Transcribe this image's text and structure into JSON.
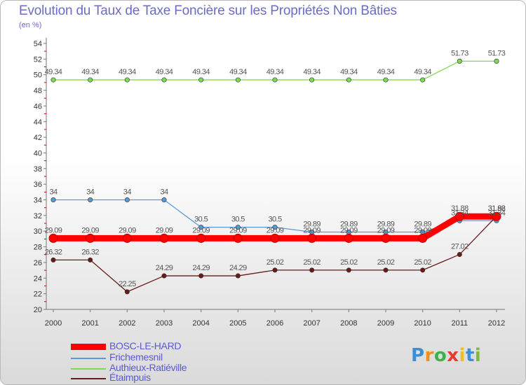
{
  "title": "Evolution du Taux de Taxe Foncière sur les Propriétés Non Bâties",
  "subtitle": "(en %)",
  "logo_text": "Proxiti",
  "chart_data": {
    "type": "line",
    "x": [
      "2000",
      "2001",
      "2002",
      "2003",
      "2004",
      "2005",
      "2006",
      "2007",
      "2008",
      "2009",
      "2010",
      "2011",
      "2012"
    ],
    "ylim": [
      20,
      54
    ],
    "yticks": [
      20,
      22,
      24,
      26,
      28,
      30,
      32,
      34,
      36,
      38,
      40,
      42,
      44,
      46,
      48,
      50,
      52,
      54
    ],
    "grid": false,
    "legend_position": "bottom-left",
    "series": [
      {
        "name": "BOSC-LE-HARD",
        "color": "#ff0000",
        "style": "thick",
        "values": [
          29.09,
          29.09,
          29.09,
          29.09,
          29.09,
          29.09,
          29.09,
          29.09,
          29.09,
          29.09,
          29.09,
          31.88,
          31.88
        ],
        "labels": [
          "29.09",
          "29.09",
          "29.09",
          "29.09",
          "29.09",
          "29.09",
          "29.09",
          "29.09",
          "29.09",
          "29.09",
          "29.09",
          "31.88",
          "31.88"
        ]
      },
      {
        "name": "Frichemesnil",
        "color": "#5b9bd5",
        "style": "thin",
        "values": [
          34,
          34,
          34,
          34,
          30.5,
          30.5,
          30.5,
          29.89,
          29.89,
          29.89,
          29.89,
          31.34,
          31.34
        ],
        "labels": [
          "34",
          "34",
          "34",
          "34",
          "30.5",
          "30.5",
          "30.5",
          "29.89",
          "29.89",
          "29.89",
          "29.89",
          "31.34",
          "31.34"
        ]
      },
      {
        "name": "Authieux-Ratiéville",
        "color": "#7ed957",
        "style": "thin",
        "values": [
          49.34,
          49.34,
          49.34,
          49.34,
          49.34,
          49.34,
          49.34,
          49.34,
          49.34,
          49.34,
          49.34,
          51.73,
          51.73
        ],
        "labels": [
          "49.34",
          "49.34",
          "49.34",
          "49.34",
          "49.34",
          "49.34",
          "49.34",
          "49.34",
          "49.34",
          "49.34",
          "49.34",
          "51.73",
          "51.73"
        ]
      },
      {
        "name": "Étaimpuis",
        "color": "#6b1a1a",
        "style": "thin",
        "values": [
          26.32,
          26.32,
          22.25,
          24.29,
          24.29,
          24.29,
          25.02,
          25.02,
          25.02,
          25.02,
          25.02,
          27.02,
          31.92
        ],
        "labels": [
          "26.32",
          "26.32",
          "22.25",
          "24.29",
          "24.29",
          "24.29",
          "25.02",
          "25.02",
          "25.02",
          "25.02",
          "25.02",
          "27.02",
          "31.92"
        ]
      }
    ]
  }
}
